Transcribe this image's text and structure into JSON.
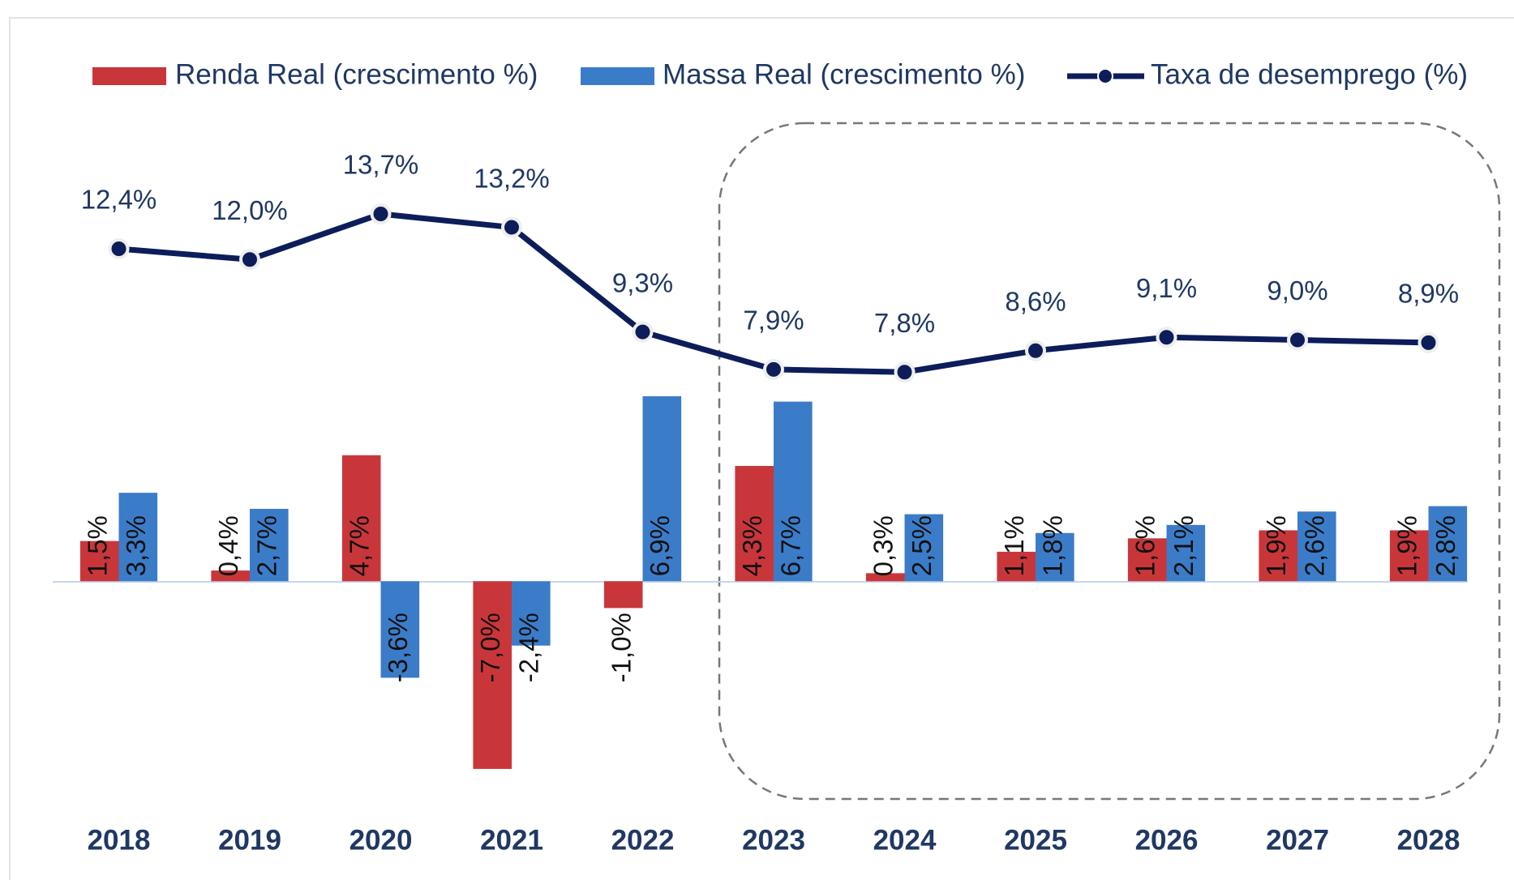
{
  "chart_data": {
    "type": "bar",
    "categories": [
      "2018",
      "2019",
      "2020",
      "2021",
      "2022",
      "2023",
      "2024",
      "2025",
      "2026",
      "2027",
      "2028"
    ],
    "series": [
      {
        "name": "Renda Real (crescimento %)",
        "type": "bar",
        "color": "#c9363a",
        "values": [
          1.5,
          0.4,
          4.7,
          -7.0,
          -1.0,
          4.3,
          0.3,
          1.1,
          1.6,
          1.9,
          1.9
        ],
        "value_labels": [
          "1,5%",
          "0,4%",
          "4,7%",
          "-7,0%",
          "-1,0%",
          "4,3%",
          "0,3%",
          "1,1%",
          "1,6%",
          "1,9%",
          "1,9%"
        ]
      },
      {
        "name": "Massa Real (crescimento %)",
        "type": "bar",
        "color": "#3b7cc9",
        "values": [
          3.3,
          2.7,
          -3.6,
          -2.4,
          6.9,
          6.7,
          2.5,
          1.8,
          2.1,
          2.6,
          2.8
        ],
        "value_labels": [
          "3,3%",
          "2,7%",
          "-3,6%",
          "-2,4%",
          "6,9%",
          "6,7%",
          "2,5%",
          "1,8%",
          "2,1%",
          "2,6%",
          "2,8%"
        ]
      },
      {
        "name": "Taxa de desemprego (%)",
        "type": "line",
        "color": "#0c1d5a",
        "values": [
          12.4,
          12.0,
          13.7,
          13.2,
          9.3,
          7.9,
          7.8,
          8.6,
          9.1,
          9.0,
          8.9
        ],
        "value_labels": [
          "12,4%",
          "12,0%",
          "13,7%",
          "13,2%",
          "9,3%",
          "7,9%",
          "7,8%",
          "8,6%",
          "9,1%",
          "9,0%",
          "8,9%"
        ]
      }
    ],
    "ylim": [
      -8,
      15
    ],
    "legend": "top"
  }
}
